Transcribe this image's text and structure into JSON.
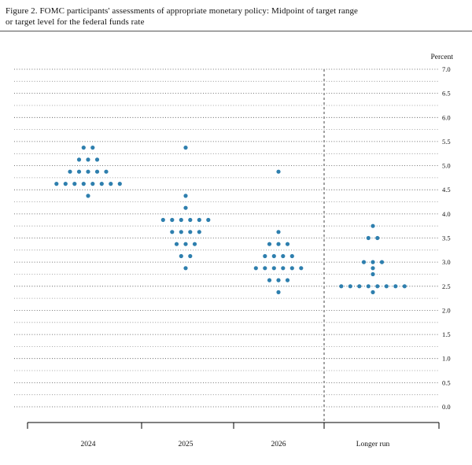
{
  "figure": {
    "title_line1": "Figure 2.  FOMC participants' assessments of appropriate monetary policy:  Midpoint of target range",
    "title_line2": "or target level for the federal funds rate"
  },
  "chart_data": {
    "type": "scatter",
    "subtype": "fomc-dot-plot",
    "title": "FOMC participants' assessments of appropriate monetary policy: Midpoint of target range or target level for the federal funds rate",
    "ylabel": "Percent",
    "ylim": [
      0.0,
      7.0
    ],
    "y_tick_step": 0.5,
    "y_tick_labels": [
      "7.0",
      "6.5",
      "6.0",
      "5.5",
      "5.0",
      "4.5",
      "4.0",
      "3.5",
      "3.0",
      "2.5",
      "2.0",
      "1.5",
      "1.0",
      "0.5",
      "0.0"
    ],
    "grid_interval": 0.25,
    "grid_style": "dotted",
    "legend_position": "none",
    "categories": [
      "2024",
      "2025",
      "2026",
      "Longer run"
    ],
    "separator_after_category": "2026",
    "dot_color": "#2e7fae",
    "series": [
      {
        "name": "2024",
        "points": [
          {
            "rate": 5.375,
            "count": 2
          },
          {
            "rate": 5.125,
            "count": 3
          },
          {
            "rate": 4.875,
            "count": 5
          },
          {
            "rate": 4.625,
            "count": 8
          },
          {
            "rate": 4.375,
            "count": 1
          }
        ]
      },
      {
        "name": "2025",
        "points": [
          {
            "rate": 5.375,
            "count": 1
          },
          {
            "rate": 4.375,
            "count": 1
          },
          {
            "rate": 4.125,
            "count": 1
          },
          {
            "rate": 3.875,
            "count": 6
          },
          {
            "rate": 3.625,
            "count": 4
          },
          {
            "rate": 3.375,
            "count": 3
          },
          {
            "rate": 3.125,
            "count": 2
          },
          {
            "rate": 2.875,
            "count": 1
          }
        ]
      },
      {
        "name": "2026",
        "points": [
          {
            "rate": 4.875,
            "count": 1
          },
          {
            "rate": 3.625,
            "count": 1
          },
          {
            "rate": 3.375,
            "count": 3
          },
          {
            "rate": 3.125,
            "count": 4
          },
          {
            "rate": 2.875,
            "count": 6
          },
          {
            "rate": 2.625,
            "count": 3
          },
          {
            "rate": 2.375,
            "count": 1
          }
        ]
      },
      {
        "name": "Longer run",
        "points": [
          {
            "rate": 3.75,
            "count": 1
          },
          {
            "rate": 3.5,
            "count": 2
          },
          {
            "rate": 3.0,
            "count": 3
          },
          {
            "rate": 2.875,
            "count": 1
          },
          {
            "rate": 2.75,
            "count": 1
          },
          {
            "rate": 2.5,
            "count": 8
          },
          {
            "rate": 2.375,
            "count": 1
          }
        ]
      }
    ]
  }
}
